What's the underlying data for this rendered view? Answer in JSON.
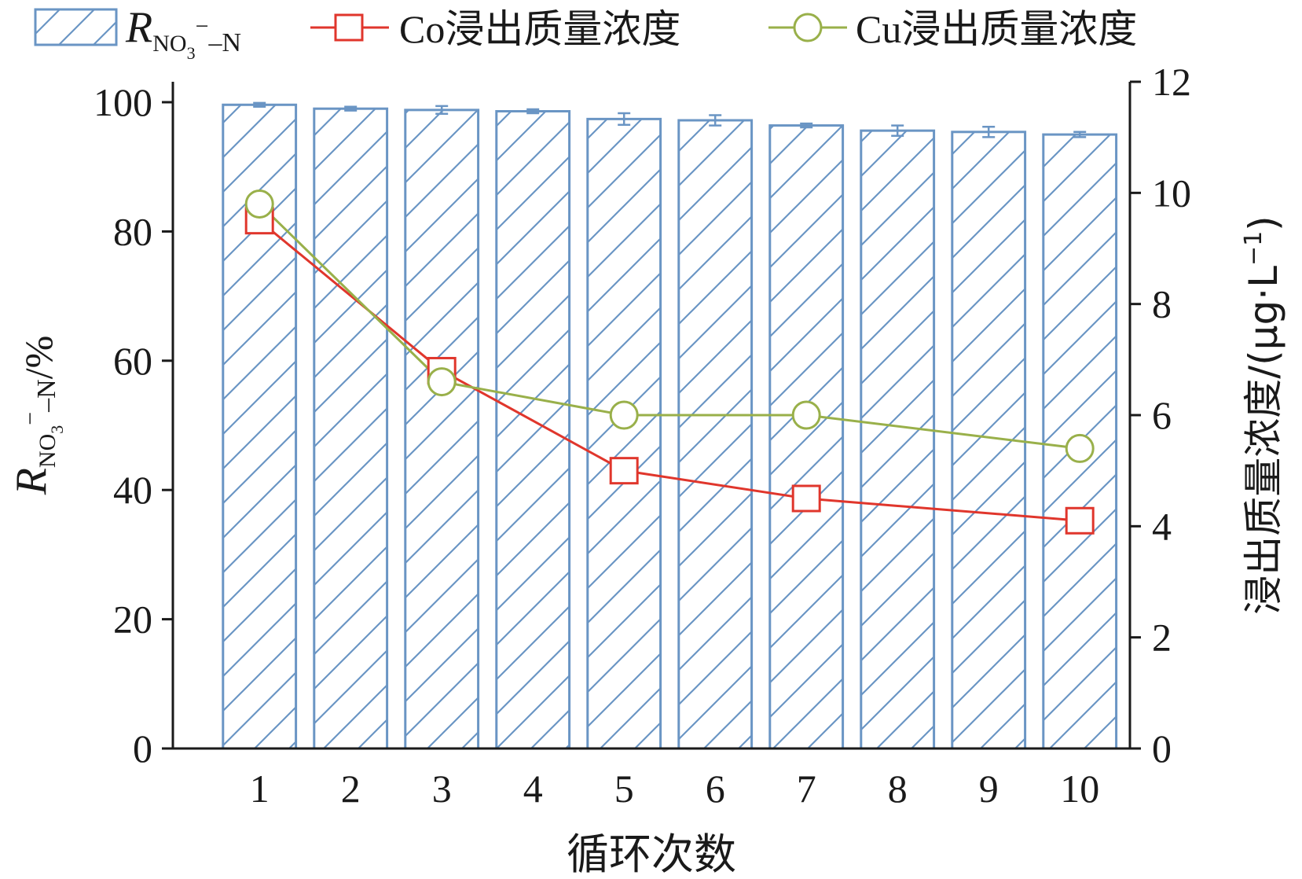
{
  "chart_data": {
    "type": "bar+line",
    "xlabel": "循环次数",
    "ylabel_left": {
      "symbol": "R",
      "subscript": "NO",
      "sub2": "3",
      "sup": "−",
      "suffix": "–N",
      "unit": "/%"
    },
    "ylabel_right": "浸出质量浓度/(μg·L",
    "ylabel_right_sup": "−1",
    "ylabel_right_close": ")",
    "categories": [
      "1",
      "2",
      "3",
      "4",
      "5",
      "6",
      "7",
      "8",
      "9",
      "10"
    ],
    "ylim_left": [
      0,
      100
    ],
    "yticks_left": [
      "0",
      "20",
      "40",
      "60",
      "80",
      "100"
    ],
    "ylim_right": [
      0,
      12
    ],
    "yticks_right": [
      "0",
      "2",
      "4",
      "6",
      "8",
      "10",
      "12"
    ],
    "grid": false,
    "legend_position": "top",
    "bars": {
      "name": {
        "symbol": "R",
        "subscript": "NO",
        "sub2": "3",
        "sup": "−",
        "suffix": "–N"
      },
      "color": "#6a95c4",
      "values": [
        99.6,
        99.0,
        98.8,
        98.6,
        97.4,
        97.2,
        96.4,
        95.6,
        95.4,
        95.0
      ],
      "errors": [
        0.3,
        0.3,
        0.6,
        0.3,
        0.9,
        0.8,
        0.3,
        0.8,
        0.8,
        0.4
      ]
    },
    "series": [
      {
        "name": "Co浸出质量浓度",
        "axis": "right",
        "marker": "square",
        "color": "#e0362c",
        "x": [
          "1",
          "3",
          "5",
          "7",
          "10"
        ],
        "values": [
          9.5,
          6.8,
          5.0,
          4.5,
          4.1
        ]
      },
      {
        "name": "Cu浸出质量浓度",
        "axis": "right",
        "marker": "circle",
        "color": "#99b04a",
        "x": [
          "1",
          "3",
          "5",
          "7",
          "10"
        ],
        "values": [
          9.8,
          6.6,
          6.0,
          6.0,
          5.4
        ]
      }
    ]
  }
}
